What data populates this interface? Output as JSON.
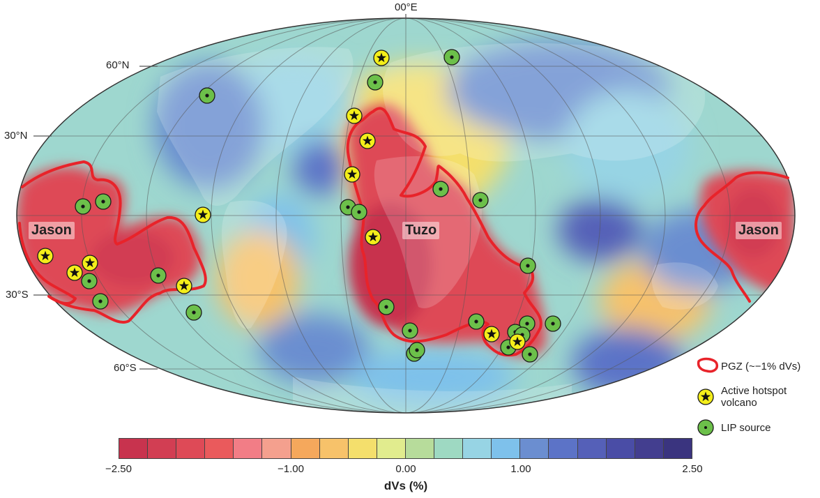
{
  "map": {
    "meridian_label": "00°E",
    "parallel_labels": [
      "60°N",
      "30°N",
      "30°S",
      "60°S"
    ],
    "region_labels": [
      "Jason",
      "Tuzo",
      "Jason"
    ]
  },
  "legend": {
    "pgz": "PGZ (~−1% dVs)",
    "hotspot": "Active hotspot volcano",
    "lip": "LIP source"
  },
  "colors": {
    "pgz_line": "#e8232a",
    "hotspot_fill": "#f4ee1a",
    "lip_fill": "#6cc04a",
    "scale": [
      "#c8334e",
      "#d23e53",
      "#de4a57",
      "#ea5a5c",
      "#f27d86",
      "#f4a08e",
      "#f5a85c",
      "#f7c26a",
      "#f4df6c",
      "#e1ec8e",
      "#b7dc9b",
      "#9ed9c2",
      "#97d4e4",
      "#7ec1eb",
      "#6b8ed0",
      "#5c73c7",
      "#5560b8",
      "#4a4da6",
      "#433e8f",
      "#3a347f"
    ]
  },
  "colorbar": {
    "tick_labels": [
      "−2.50",
      "−1.00",
      "0.00",
      "1.00",
      "2.50"
    ],
    "title": "dVs (%)"
  }
}
